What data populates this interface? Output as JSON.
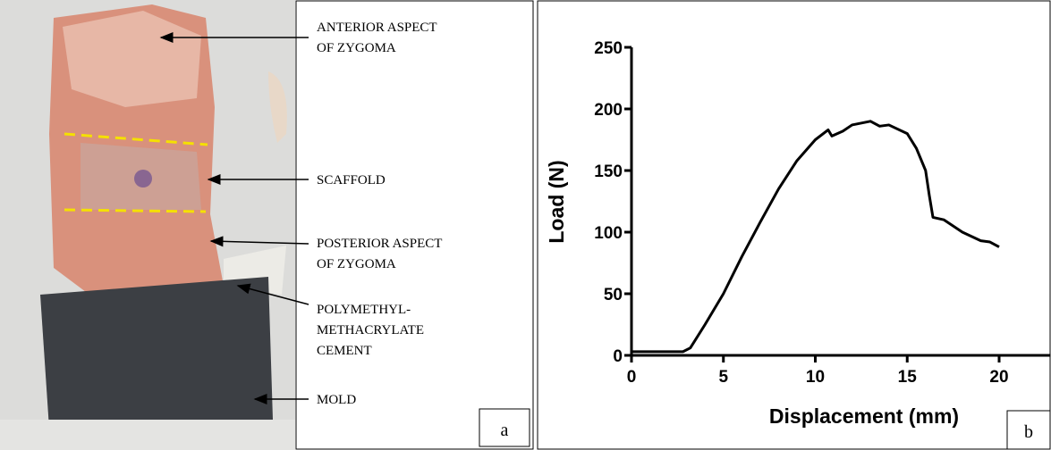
{
  "panel_a": {
    "annotations": [
      {
        "lines": [
          "ANTERIOR ASPECT",
          "OF ZYGOMA"
        ]
      },
      {
        "lines": [
          "SCAFFOLD"
        ]
      },
      {
        "lines": [
          "POSTERIOR ASPECT",
          "OF ZYGOMA"
        ]
      },
      {
        "lines": [
          "POLYMETHYL-",
          "METHACRYLATE",
          "CEMENT"
        ]
      },
      {
        "lines": [
          "MOLD"
        ]
      }
    ],
    "label": "a"
  },
  "panel_b_label": "b",
  "chart_data": {
    "type": "line",
    "xlabel": "Displacement (mm)",
    "ylabel": "Load (N)",
    "x": [
      0,
      1,
      2,
      2.8,
      3.2,
      4,
      5,
      6,
      7,
      8,
      9,
      10,
      10.7,
      10.9,
      11.5,
      12,
      13,
      13.5,
      14,
      15,
      15.5,
      16,
      16.2,
      16.4,
      17,
      18,
      19,
      19.5,
      20
    ],
    "series": [
      {
        "color": "#000000",
        "values": [
          3,
          3,
          3,
          3,
          6,
          25,
          50,
          80,
          108,
          135,
          158,
          175,
          183,
          178,
          182,
          187,
          190,
          186,
          187,
          180,
          168,
          150,
          130,
          112,
          110,
          100,
          93,
          92,
          88
        ]
      }
    ],
    "xlim": [
      0,
      22.8
    ],
    "xticks": [
      0,
      5,
      10,
      15,
      20
    ],
    "ylim": [
      0,
      250
    ],
    "yticks": [
      0,
      50,
      100,
      150,
      200,
      250
    ]
  }
}
